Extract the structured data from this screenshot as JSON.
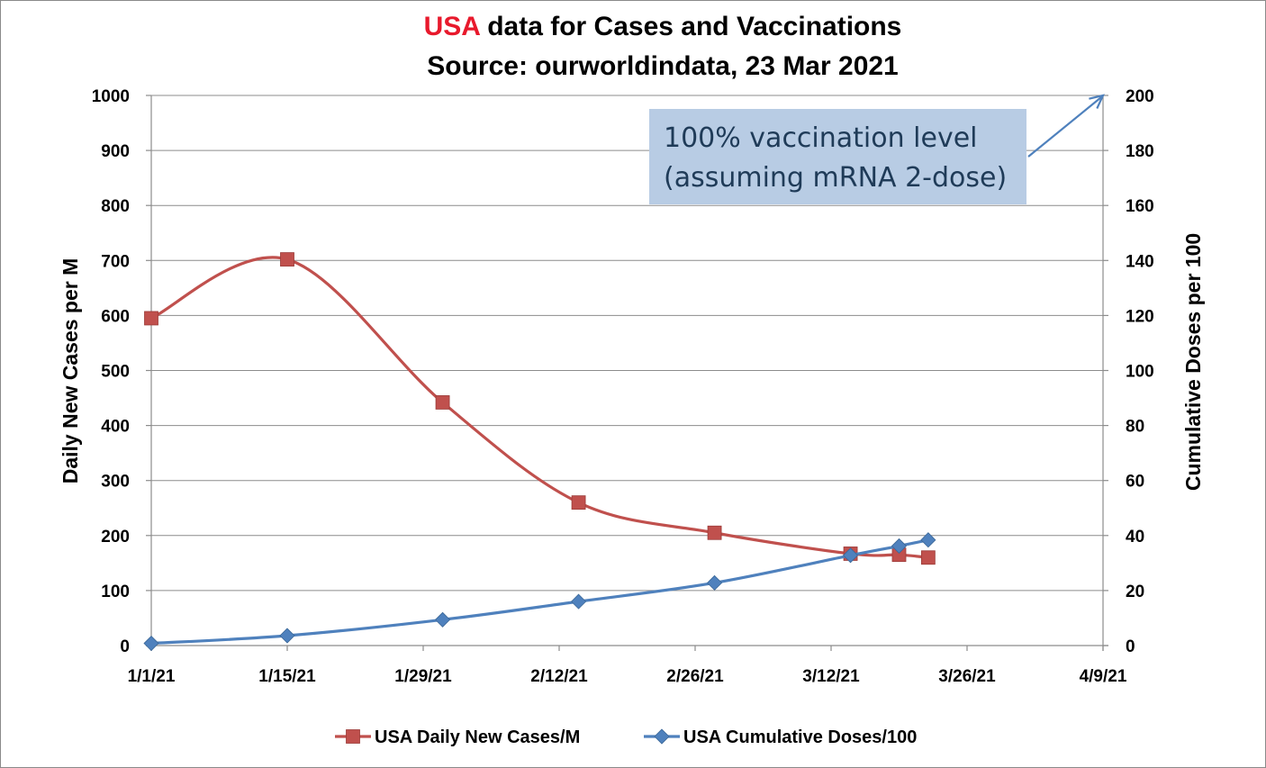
{
  "chart_data": {
    "type": "line",
    "title": {
      "highlight": "USA",
      "highlight_color": "#e8192c",
      "rest": " data for Cases and Vaccinations",
      "line2": "Source: ourworldindata, 23 Mar 2021"
    },
    "xlabel": "",
    "ylabel": "Daily New Cases per M",
    "y2label": "Cumulative Doses per 100",
    "x_range": [
      "2021-01-01",
      "2021-04-09"
    ],
    "x_ticks": [
      {
        "date": "2021-01-01",
        "label": "1/1/21"
      },
      {
        "date": "2021-01-15",
        "label": "1/15/21"
      },
      {
        "date": "2021-01-29",
        "label": "1/29/21"
      },
      {
        "date": "2021-02-12",
        "label": "2/12/21"
      },
      {
        "date": "2021-02-26",
        "label": "2/26/21"
      },
      {
        "date": "2021-03-12",
        "label": "3/12/21"
      },
      {
        "date": "2021-03-26",
        "label": "3/26/21"
      },
      {
        "date": "2021-04-09",
        "label": "4/9/21"
      }
    ],
    "ylim": [
      0,
      1000
    ],
    "y_ticks": [
      0,
      100,
      200,
      300,
      400,
      500,
      600,
      700,
      800,
      900,
      1000
    ],
    "y2lim": [
      0,
      200
    ],
    "y2_ticks": [
      0,
      20,
      40,
      60,
      80,
      100,
      120,
      140,
      160,
      180,
      200
    ],
    "grid": true,
    "legend_position": "bottom",
    "series": [
      {
        "name": "USA Daily New Cases/M",
        "axis": "left",
        "color": "#c0504d",
        "marker": "square",
        "smooth": true,
        "points": [
          {
            "x": "2021-01-01",
            "y": 595
          },
          {
            "x": "2021-01-15",
            "y": 702
          },
          {
            "x": "2021-01-31",
            "y": 442
          },
          {
            "x": "2021-02-14",
            "y": 260
          },
          {
            "x": "2021-02-28",
            "y": 205
          },
          {
            "x": "2021-03-14",
            "y": 167
          },
          {
            "x": "2021-03-19",
            "y": 165
          },
          {
            "x": "2021-03-22",
            "y": 160
          }
        ]
      },
      {
        "name": "USA Cumulative Doses/100",
        "axis": "right",
        "color": "#4f81bd",
        "marker": "diamond",
        "smooth": true,
        "points": [
          {
            "x": "2021-01-01",
            "y": 0.8
          },
          {
            "x": "2021-01-15",
            "y": 3.6
          },
          {
            "x": "2021-01-31",
            "y": 9.4
          },
          {
            "x": "2021-02-14",
            "y": 16.0
          },
          {
            "x": "2021-02-28",
            "y": 22.8
          },
          {
            "x": "2021-03-14",
            "y": 32.8
          },
          {
            "x": "2021-03-19",
            "y": 36.2
          },
          {
            "x": "2021-03-22",
            "y": 38.4
          }
        ]
      }
    ],
    "annotation": {
      "line1": "100% vaccination level",
      "line2": "(assuming mRNA 2-dose)",
      "box_color": "#b8cce4",
      "text_color": "#1f3b58",
      "arrow_color": "#4f81bd",
      "arrow_to": {
        "x": "2021-04-09",
        "y2": 200
      }
    }
  }
}
